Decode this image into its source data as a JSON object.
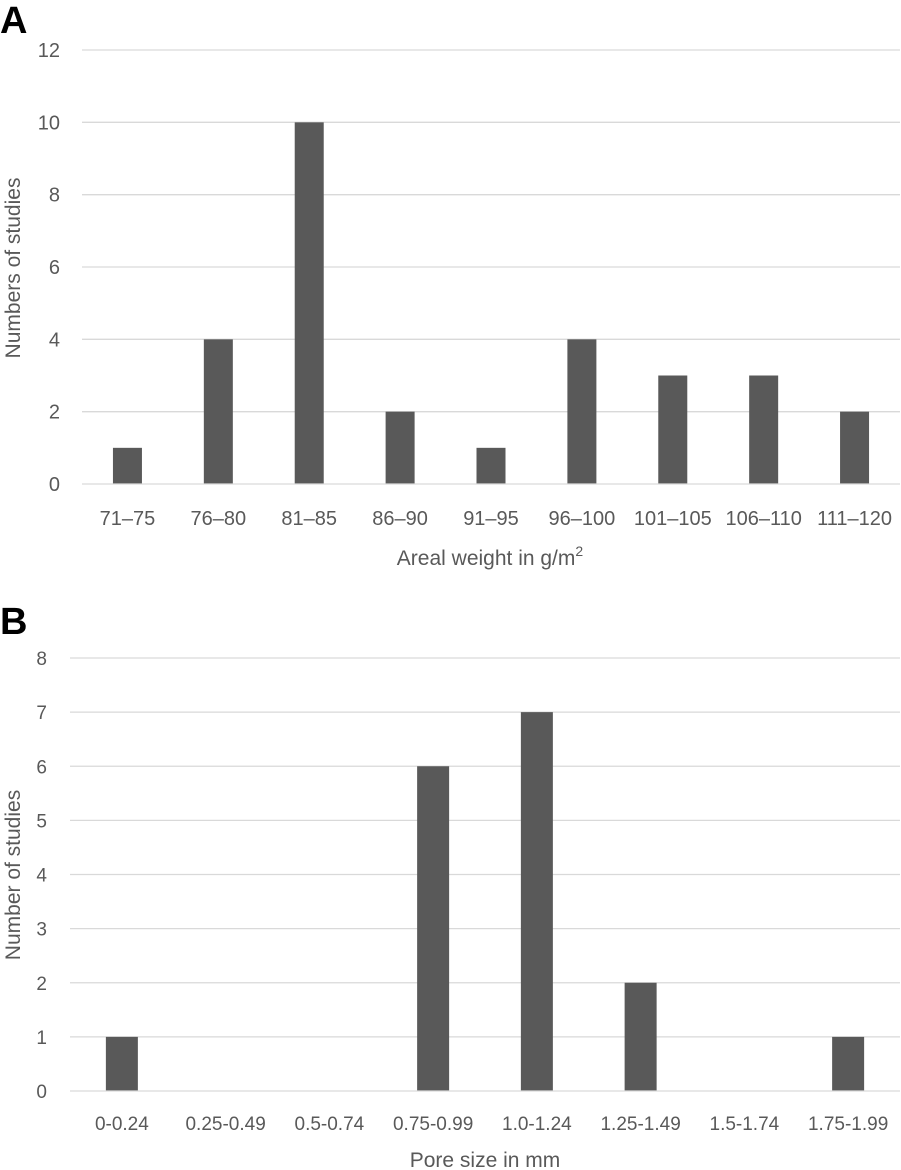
{
  "chart_data": [
    {
      "type": "bar",
      "panel_label": "A",
      "categories": [
        "71–75",
        "76–80",
        "81–85",
        "86–90",
        "91–95",
        "96–100",
        "101–105",
        "106–110",
        "111–120"
      ],
      "values": [
        1,
        4,
        10,
        2,
        1,
        4,
        3,
        3,
        2
      ],
      "ylabel": "Numbers of studies",
      "xlabel": "Areal weight in g/m",
      "xlabel_superscript": "2",
      "ylim": [
        0,
        12
      ],
      "yticks": [
        0,
        2,
        4,
        6,
        8,
        10,
        12
      ],
      "grid": true,
      "bar_color": "#595959"
    },
    {
      "type": "bar",
      "panel_label": "B",
      "categories": [
        "0-0.24",
        "0.25-0.49",
        "0.5-0.74",
        "0.75-0.99",
        "1.0-1.24",
        "1.25-1.49",
        "1.5-1.74",
        "1.75-1.99"
      ],
      "values": [
        1,
        0,
        0,
        6,
        7,
        2,
        0,
        1
      ],
      "ylabel": "Number of studies",
      "xlabel": "Pore size in mm",
      "ylim": [
        0,
        8
      ],
      "yticks": [
        0,
        1,
        2,
        3,
        4,
        5,
        6,
        7,
        8
      ],
      "grid": true,
      "bar_color": "#595959"
    }
  ]
}
